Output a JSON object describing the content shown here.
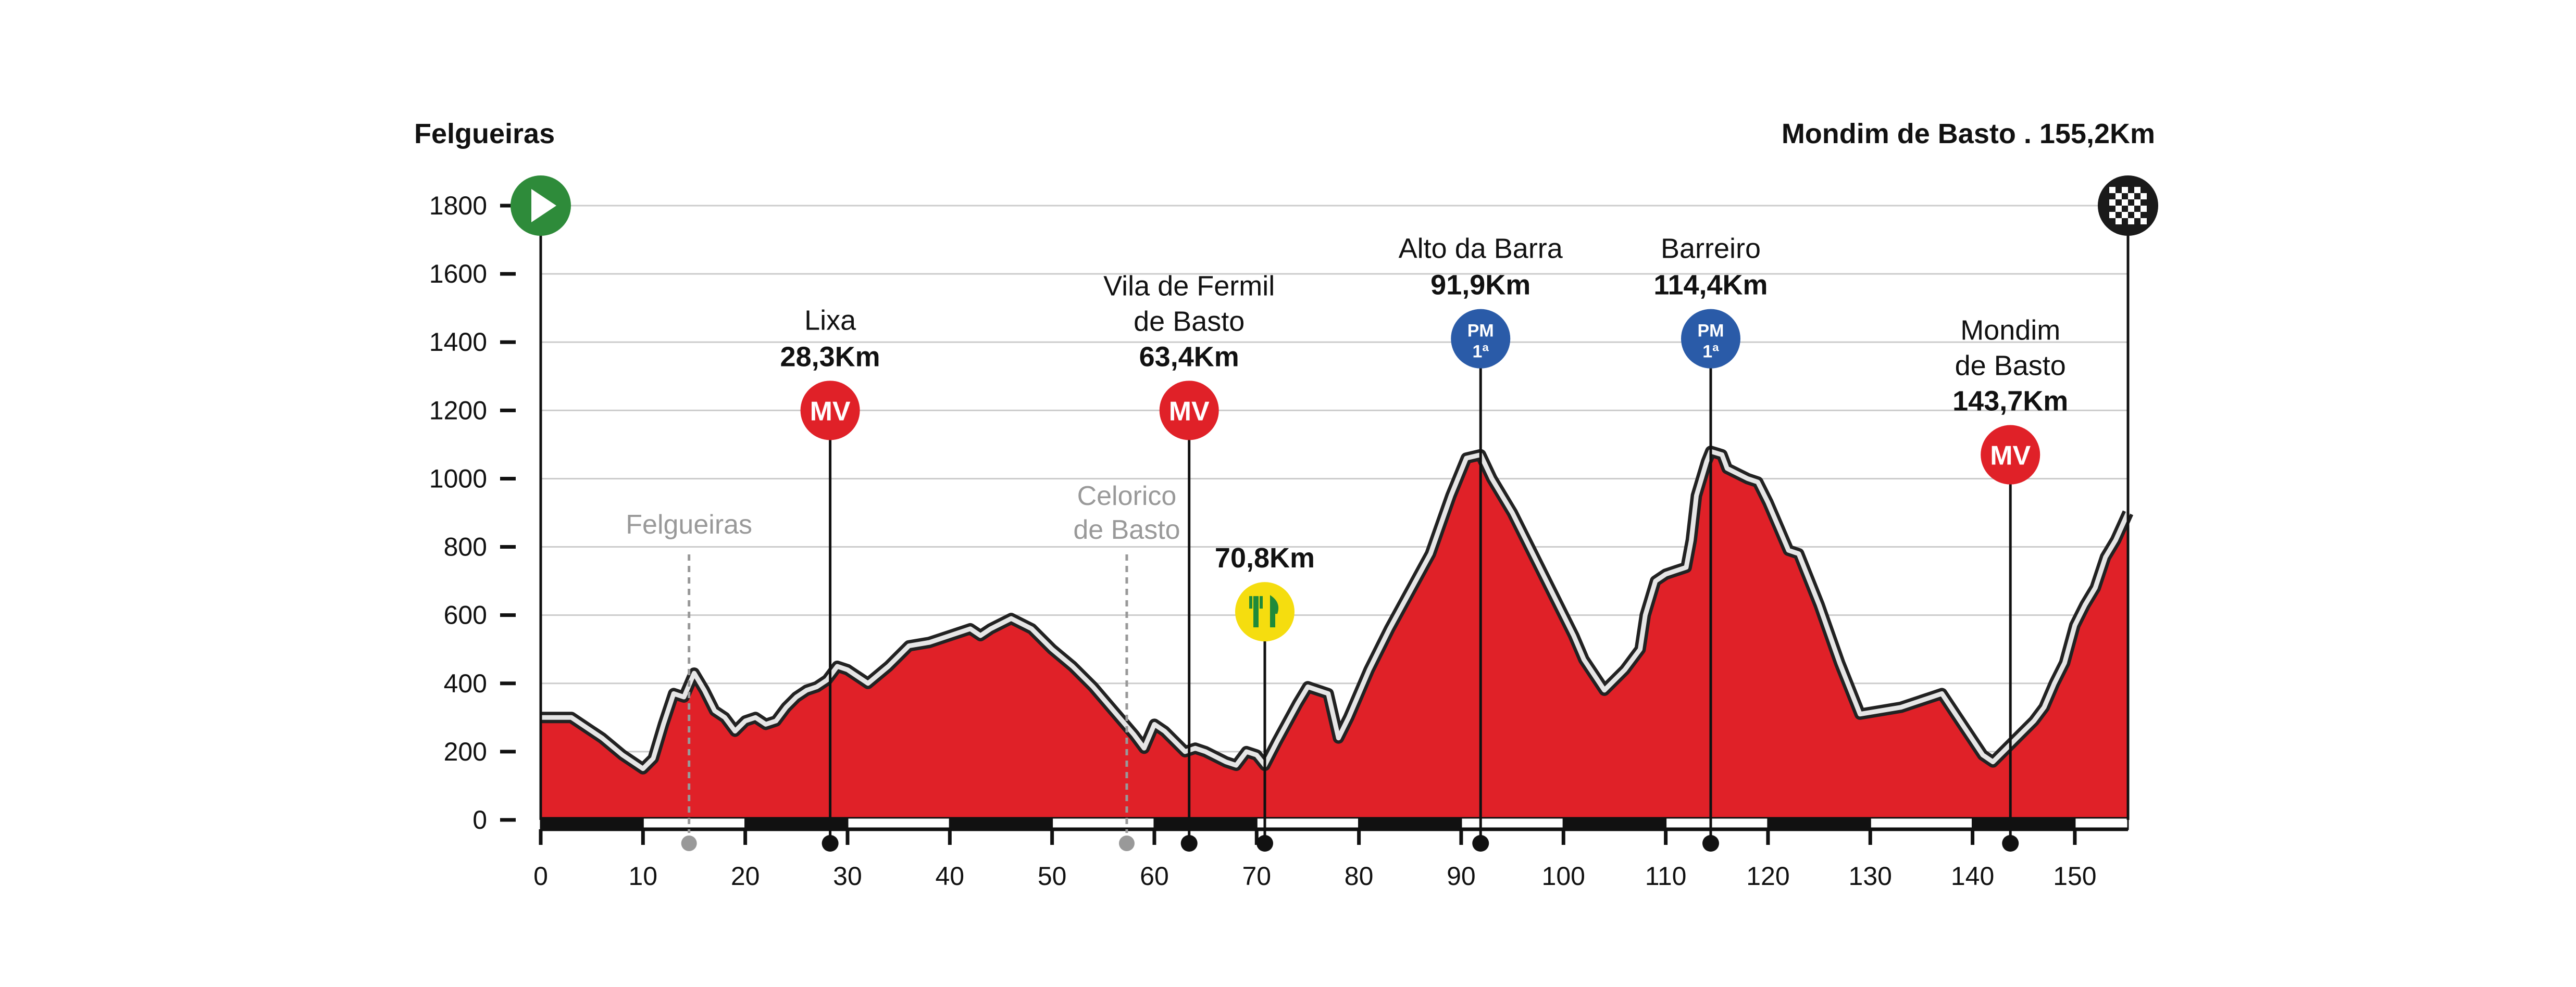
{
  "chart_data": {
    "type": "area",
    "start_label": "Felgueiras",
    "finish_label": "Mondim de Basto . 155,2Km",
    "xlim": [
      0,
      155.2
    ],
    "ylim": [
      0,
      1800
    ],
    "x_ticks": [
      0,
      10,
      20,
      30,
      40,
      50,
      60,
      70,
      80,
      90,
      100,
      110,
      120,
      130,
      140,
      150
    ],
    "y_ticks": [
      0,
      200,
      400,
      600,
      800,
      1000,
      1200,
      1400,
      1600,
      1800
    ],
    "grid": true,
    "colors": {
      "fill": "#e02128",
      "mv_badge": "#e02128",
      "pm_badge": "#2a5ba8",
      "feed_badge": "#f5dd0f",
      "start_badge": "#2e8b3a",
      "finish_badge": "#1a1a1a",
      "grid": "#cccccc",
      "town": "#999999"
    },
    "profile": [
      [
        0,
        300
      ],
      [
        3,
        300
      ],
      [
        6,
        240
      ],
      [
        8,
        190
      ],
      [
        10,
        150
      ],
      [
        11,
        180
      ],
      [
        12,
        280
      ],
      [
        13,
        370
      ],
      [
        14,
        360
      ],
      [
        15,
        430
      ],
      [
        16,
        380
      ],
      [
        17,
        320
      ],
      [
        18,
        300
      ],
      [
        19,
        260
      ],
      [
        20,
        290
      ],
      [
        21,
        300
      ],
      [
        22,
        280
      ],
      [
        23,
        290
      ],
      [
        24,
        330
      ],
      [
        25,
        360
      ],
      [
        26,
        380
      ],
      [
        27,
        390
      ],
      [
        28,
        410
      ],
      [
        29,
        450
      ],
      [
        30,
        440
      ],
      [
        32,
        400
      ],
      [
        34,
        450
      ],
      [
        36,
        510
      ],
      [
        38,
        520
      ],
      [
        40,
        540
      ],
      [
        42,
        560
      ],
      [
        43,
        540
      ],
      [
        44,
        560
      ],
      [
        46,
        590
      ],
      [
        48,
        560
      ],
      [
        50,
        500
      ],
      [
        52,
        450
      ],
      [
        54,
        390
      ],
      [
        56,
        320
      ],
      [
        58,
        250
      ],
      [
        59,
        210
      ],
      [
        60,
        280
      ],
      [
        61,
        260
      ],
      [
        62,
        230
      ],
      [
        63,
        200
      ],
      [
        64,
        210
      ],
      [
        65,
        200
      ],
      [
        67,
        170
      ],
      [
        68,
        160
      ],
      [
        69,
        200
      ],
      [
        70,
        190
      ],
      [
        70.8,
        160
      ],
      [
        72,
        230
      ],
      [
        74,
        340
      ],
      [
        75,
        390
      ],
      [
        76,
        380
      ],
      [
        77,
        370
      ],
      [
        78,
        240
      ],
      [
        79,
        300
      ],
      [
        81,
        440
      ],
      [
        83,
        560
      ],
      [
        85,
        670
      ],
      [
        87,
        780
      ],
      [
        89,
        950
      ],
      [
        90.5,
        1060
      ],
      [
        91.9,
        1070
      ],
      [
        93,
        1000
      ],
      [
        95,
        900
      ],
      [
        97,
        780
      ],
      [
        99,
        660
      ],
      [
        101,
        540
      ],
      [
        102,
        470
      ],
      [
        104,
        380
      ],
      [
        106,
        440
      ],
      [
        107.5,
        500
      ],
      [
        108,
        600
      ],
      [
        109,
        700
      ],
      [
        110,
        720
      ],
      [
        111,
        730
      ],
      [
        112,
        740
      ],
      [
        112.5,
        820
      ],
      [
        113,
        950
      ],
      [
        114,
        1050
      ],
      [
        114.4,
        1080
      ],
      [
        115.5,
        1070
      ],
      [
        116,
        1030
      ],
      [
        118,
        1000
      ],
      [
        119,
        990
      ],
      [
        120,
        930
      ],
      [
        121,
        860
      ],
      [
        122,
        790
      ],
      [
        123,
        780
      ],
      [
        125,
        630
      ],
      [
        127,
        460
      ],
      [
        129,
        310
      ],
      [
        133,
        330
      ],
      [
        136,
        360
      ],
      [
        137,
        370
      ],
      [
        139,
        280
      ],
      [
        141,
        190
      ],
      [
        142,
        170
      ],
      [
        143,
        200
      ],
      [
        144,
        230
      ],
      [
        146,
        290
      ],
      [
        147,
        330
      ],
      [
        148,
        400
      ],
      [
        149,
        460
      ],
      [
        150,
        570
      ],
      [
        151,
        630
      ],
      [
        152,
        680
      ],
      [
        153,
        770
      ],
      [
        154,
        820
      ],
      [
        155.2,
        900
      ]
    ],
    "climbs": [
      {
        "name": "Lixa",
        "km_label": "28,3Km",
        "km": 28.3,
        "badge": "MV",
        "alt": 1200
      },
      {
        "name_line1": "Vila de Fermil",
        "name_line2": "de Basto",
        "km_label": "63,4Km",
        "km": 63.4,
        "badge": "MV",
        "alt": 1200
      },
      {
        "name": "Alto da Barra",
        "km_label": "91,9Km",
        "km": 91.9,
        "badge": "PM",
        "category": "1ª",
        "alt": 1410
      },
      {
        "name": "Barreiro",
        "km_label": "114,4Km",
        "km": 114.4,
        "badge": "PM",
        "category": "1ª",
        "alt": 1410
      },
      {
        "name_line1": "Mondim",
        "name_line2": "de Basto",
        "km_label": "143,7Km",
        "km": 143.7,
        "badge": "MV",
        "alt": 1070
      }
    ],
    "feed_zone": {
      "km_label": "70,8Km",
      "km": 70.8,
      "alt": 610
    },
    "towns": [
      {
        "name": "Felgueiras",
        "km": 14.5
      },
      {
        "name_line1": "Celorico",
        "name_line2": "de Basto",
        "km": 57.3
      }
    ]
  }
}
